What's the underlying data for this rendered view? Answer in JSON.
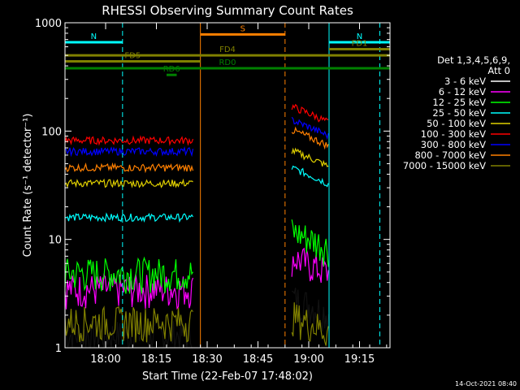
{
  "chart_data": {
    "type": "line",
    "title": "RHESSI Observing Summary Count Rates",
    "xlabel": "Start Time (22-Feb-07 17:48:02)",
    "ylabel": "Count Rate (s⁻¹ detector⁻¹)",
    "yscale": "log",
    "ylim": [
      1,
      1000
    ],
    "xlim_minutes": [
      0,
      96
    ],
    "x_ticks": [
      {
        "t": 12,
        "label": "18:00"
      },
      {
        "t": 27,
        "label": "18:15"
      },
      {
        "t": 42,
        "label": "18:30"
      },
      {
        "t": 57,
        "label": "18:45"
      },
      {
        "t": 72,
        "label": "19:00"
      },
      {
        "t": 87,
        "label": "19:15"
      }
    ],
    "y_ticks": [
      {
        "v": 1,
        "label": "1"
      },
      {
        "v": 10,
        "label": "10"
      },
      {
        "v": 100,
        "label": "100"
      },
      {
        "v": 1000,
        "label": "1000"
      }
    ],
    "legend_header": [
      "Det 1,3,4,5,6,9,",
      "Att 0"
    ],
    "series": [
      {
        "name": "3 - 6 keV",
        "color": "#000000"
      },
      {
        "name": "6 - 12 keV",
        "color": "#ff00ff"
      },
      {
        "name": "12 - 25 keV",
        "color": "#00ff00"
      },
      {
        "name": "25 - 50 keV",
        "color": "#00ffff"
      },
      {
        "name": "50 - 100 keV",
        "color": "#e0d000"
      },
      {
        "name": "100 - 300 keV",
        "color": "#ff0000"
      },
      {
        "name": "300 - 800 keV",
        "color": "#0000ff"
      },
      {
        "name": "800 - 7000 keV",
        "color": "#ff8000"
      },
      {
        "name": "7000 - 15000 keV",
        "color": "#808000"
      }
    ],
    "segments": [
      {
        "t0": 0,
        "t1": 38,
        "values": {
          "3 - 6 keV": 1.2,
          "6 - 12 keV": 3.2,
          "12 - 25 keV": 4.5,
          "25 - 50 keV": 16,
          "50 - 100 keV": 33,
          "100 - 300 keV": 82,
          "300 - 800 keV": 65,
          "800 - 7000 keV": 46,
          "7000 - 15000 keV": 1.6
        }
      },
      {
        "t0": 67,
        "t1": 78,
        "values": {
          "3 - 6 keV": 2.2,
          "6 - 12 keV": 5.2,
          "12 - 25 keV": 9,
          "25 - 50 keV": 38,
          "50 - 100 keV": 55,
          "100 - 300 keV": 140,
          "300 - 800 keV": 105,
          "800 - 7000 keV": 85,
          "7000 - 15000 keV": 1.5
        }
      }
    ],
    "flag_bars": [
      {
        "label": "N",
        "t0": 0,
        "t1": 17,
        "value": 660,
        "color": "#00ffff"
      },
      {
        "label": "N",
        "t0": 78,
        "t1": 96,
        "value": 660,
        "color": "#00ffff"
      },
      {
        "label": "S",
        "t0": 40,
        "t1": 65,
        "value": 780,
        "color": "#ff8000"
      },
      {
        "label": "FD1",
        "t0": 78,
        "t1": 96,
        "value": 570,
        "color": "#808000"
      },
      {
        "label": "FD4",
        "t0": 0,
        "t1": 96,
        "value": 500,
        "color": "#808000"
      },
      {
        "label": "FD5",
        "t0": 0,
        "t1": 40,
        "value": 440,
        "color": "#808000"
      },
      {
        "label": "RD0",
        "t0": 0,
        "t1": 96,
        "value": 380,
        "color": "#008000"
      },
      {
        "label": "RD6",
        "t0": 30,
        "t1": 33,
        "value": 330,
        "color": "#008000"
      }
    ],
    "vlines": [
      {
        "t": 17,
        "color": "#00ffff",
        "dashed": true
      },
      {
        "t": 40,
        "color": "#ff8000",
        "dashed": false
      },
      {
        "t": 65,
        "color": "#ff8000",
        "dashed": true
      },
      {
        "t": 78,
        "color": "#00ffff",
        "dashed": false
      },
      {
        "t": 93,
        "color": "#00ffff",
        "dashed": true
      }
    ],
    "grid": false,
    "legend_position": "right"
  },
  "timestamp": "14-Oct-2021 08:40"
}
